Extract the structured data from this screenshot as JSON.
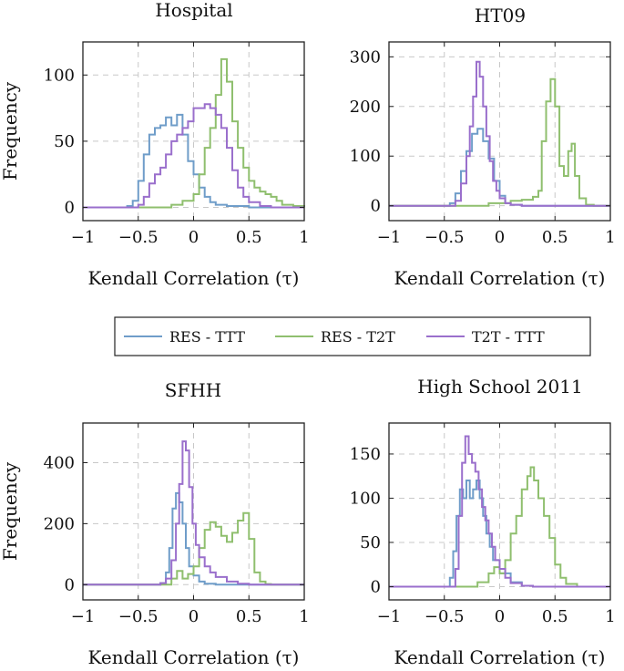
{
  "colors": {
    "res_ttt": "#6f9dc9",
    "res_t2t": "#8fbf6e",
    "t2t_ttt": "#9a6fcc"
  },
  "legend": {
    "items": [
      "RES - TTT",
      "RES - T2T",
      "T2T - TTT"
    ]
  },
  "chart_data": [
    {
      "type": "histogram",
      "title": "Hospital",
      "xlabel": "Kendall Correlation (τ)",
      "ylabel": "Frequency",
      "xlim": [
        -1,
        1
      ],
      "ylim": [
        -10,
        125
      ],
      "xticks": [
        -1,
        -0.5,
        0,
        0.5,
        1
      ],
      "xtick_labels": [
        "−1",
        "−0.5",
        "0",
        "0.5",
        "1"
      ],
      "yticks": [
        0,
        50,
        100
      ],
      "ytick_labels": [
        "0",
        "50",
        "100"
      ],
      "series": [
        {
          "name": "RES - TTT",
          "points": [
            [
              -1,
              0
            ],
            [
              -0.8,
              0
            ],
            [
              -0.6,
              1
            ],
            [
              -0.55,
              5
            ],
            [
              -0.5,
              20
            ],
            [
              -0.45,
              40
            ],
            [
              -0.4,
              55
            ],
            [
              -0.35,
              60
            ],
            [
              -0.3,
              62
            ],
            [
              -0.25,
              68
            ],
            [
              -0.2,
              62
            ],
            [
              -0.15,
              70
            ],
            [
              -0.1,
              55
            ],
            [
              -0.05,
              35
            ],
            [
              0,
              25
            ],
            [
              0.05,
              15
            ],
            [
              0.1,
              8
            ],
            [
              0.15,
              4
            ],
            [
              0.2,
              2
            ],
            [
              0.3,
              1
            ],
            [
              0.5,
              0
            ],
            [
              1,
              0
            ]
          ]
        },
        {
          "name": "RES - T2T",
          "points": [
            [
              -1,
              0
            ],
            [
              -0.3,
              0
            ],
            [
              -0.2,
              2
            ],
            [
              -0.1,
              5
            ],
            [
              0,
              10
            ],
            [
              0.05,
              25
            ],
            [
              0.1,
              45
            ],
            [
              0.15,
              60
            ],
            [
              0.2,
              85
            ],
            [
              0.25,
              112
            ],
            [
              0.3,
              95
            ],
            [
              0.35,
              65
            ],
            [
              0.4,
              45
            ],
            [
              0.45,
              30
            ],
            [
              0.5,
              20
            ],
            [
              0.55,
              15
            ],
            [
              0.6,
              12
            ],
            [
              0.65,
              10
            ],
            [
              0.7,
              8
            ],
            [
              0.75,
              5
            ],
            [
              0.8,
              2
            ],
            [
              0.9,
              1
            ],
            [
              1,
              0
            ]
          ]
        },
        {
          "name": "T2T - TTT",
          "points": [
            [
              -1,
              0
            ],
            [
              -0.6,
              0
            ],
            [
              -0.5,
              2
            ],
            [
              -0.45,
              8
            ],
            [
              -0.4,
              18
            ],
            [
              -0.35,
              25
            ],
            [
              -0.3,
              30
            ],
            [
              -0.25,
              40
            ],
            [
              -0.2,
              50
            ],
            [
              -0.15,
              55
            ],
            [
              -0.1,
              60
            ],
            [
              -0.05,
              65
            ],
            [
              0,
              75
            ],
            [
              0.05,
              75
            ],
            [
              0.1,
              78
            ],
            [
              0.15,
              75
            ],
            [
              0.2,
              70
            ],
            [
              0.25,
              60
            ],
            [
              0.3,
              45
            ],
            [
              0.35,
              28
            ],
            [
              0.4,
              15
            ],
            [
              0.45,
              8
            ],
            [
              0.5,
              4
            ],
            [
              0.6,
              1
            ],
            [
              0.7,
              0
            ],
            [
              1,
              0
            ]
          ]
        }
      ]
    },
    {
      "type": "histogram",
      "title": "HT09",
      "xlabel": "Kendall Correlation (τ)",
      "ylabel": "",
      "xlim": [
        -1,
        1
      ],
      "ylim": [
        -30,
        330
      ],
      "xticks": [
        -1,
        -0.5,
        0,
        0.5,
        1
      ],
      "xtick_labels": [
        "−1",
        "−0.5",
        "0",
        "0.5",
        "1"
      ],
      "yticks": [
        0,
        100,
        200,
        300
      ],
      "ytick_labels": [
        "0",
        "100",
        "200",
        "300"
      ],
      "series": [
        {
          "name": "RES - TTT",
          "points": [
            [
              -1,
              0
            ],
            [
              -0.5,
              0
            ],
            [
              -0.45,
              5
            ],
            [
              -0.4,
              25
            ],
            [
              -0.35,
              70
            ],
            [
              -0.3,
              110
            ],
            [
              -0.25,
              145
            ],
            [
              -0.2,
              155
            ],
            [
              -0.15,
              130
            ],
            [
              -0.1,
              95
            ],
            [
              -0.05,
              50
            ],
            [
              0,
              20
            ],
            [
              0.05,
              5
            ],
            [
              0.1,
              2
            ],
            [
              0.2,
              0
            ],
            [
              1,
              0
            ]
          ]
        },
        {
          "name": "RES - T2T",
          "points": [
            [
              -1,
              0
            ],
            [
              -0.3,
              0
            ],
            [
              -0.1,
              5
            ],
            [
              0.1,
              10
            ],
            [
              0.2,
              12
            ],
            [
              0.3,
              18
            ],
            [
              0.35,
              30
            ],
            [
              0.38,
              130
            ],
            [
              0.42,
              210
            ],
            [
              0.46,
              255
            ],
            [
              0.5,
              200
            ],
            [
              0.54,
              80
            ],
            [
              0.58,
              60
            ],
            [
              0.62,
              110
            ],
            [
              0.65,
              125
            ],
            [
              0.68,
              60
            ],
            [
              0.72,
              15
            ],
            [
              0.78,
              2
            ],
            [
              0.85,
              0
            ],
            [
              1,
              0
            ]
          ]
        },
        {
          "name": "T2T - TTT",
          "points": [
            [
              -1,
              0
            ],
            [
              -0.45,
              0
            ],
            [
              -0.4,
              10
            ],
            [
              -0.35,
              45
            ],
            [
              -0.3,
              100
            ],
            [
              -0.27,
              160
            ],
            [
              -0.24,
              220
            ],
            [
              -0.21,
              290
            ],
            [
              -0.18,
              260
            ],
            [
              -0.15,
              200
            ],
            [
              -0.12,
              140
            ],
            [
              -0.09,
              90
            ],
            [
              -0.06,
              50
            ],
            [
              -0.03,
              30
            ],
            [
              0,
              15
            ],
            [
              0.05,
              5
            ],
            [
              0.1,
              2
            ],
            [
              0.2,
              0
            ],
            [
              1,
              0
            ]
          ]
        }
      ]
    },
    {
      "type": "histogram",
      "title": "SFHH",
      "xlabel": "Kendall Correlation (τ)",
      "ylabel": "Frequency",
      "xlim": [
        -1,
        1
      ],
      "ylim": [
        -50,
        530
      ],
      "xticks": [
        -1,
        -0.5,
        0,
        0.5,
        1
      ],
      "xtick_labels": [
        "−1",
        "−0.5",
        "0",
        "0.5",
        "1"
      ],
      "yticks": [
        0,
        200,
        400
      ],
      "ytick_labels": [
        "0",
        "200",
        "400"
      ],
      "series": [
        {
          "name": "RES - TTT",
          "points": [
            [
              -1,
              0
            ],
            [
              -0.4,
              0
            ],
            [
              -0.3,
              5
            ],
            [
              -0.25,
              40
            ],
            [
              -0.22,
              120
            ],
            [
              -0.19,
              250
            ],
            [
              -0.16,
              300
            ],
            [
              -0.13,
              270
            ],
            [
              -0.1,
              200
            ],
            [
              -0.07,
              120
            ],
            [
              -0.04,
              60
            ],
            [
              0,
              30
            ],
            [
              0.05,
              10
            ],
            [
              0.1,
              3
            ],
            [
              0.2,
              0
            ],
            [
              1,
              0
            ]
          ]
        },
        {
          "name": "RES - T2T",
          "points": [
            [
              -1,
              0
            ],
            [
              -0.3,
              0
            ],
            [
              -0.2,
              20
            ],
            [
              -0.15,
              45
            ],
            [
              -0.1,
              20
            ],
            [
              -0.05,
              35
            ],
            [
              0,
              60
            ],
            [
              0.05,
              120
            ],
            [
              0.1,
              180
            ],
            [
              0.15,
              205
            ],
            [
              0.2,
              190
            ],
            [
              0.25,
              160
            ],
            [
              0.3,
              140
            ],
            [
              0.35,
              170
            ],
            [
              0.4,
              210
            ],
            [
              0.45,
              235
            ],
            [
              0.5,
              150
            ],
            [
              0.55,
              40
            ],
            [
              0.6,
              10
            ],
            [
              0.65,
              2
            ],
            [
              0.7,
              0
            ],
            [
              1,
              0
            ]
          ]
        },
        {
          "name": "T2T - TTT",
          "points": [
            [
              -1,
              0
            ],
            [
              -0.4,
              0
            ],
            [
              -0.3,
              5
            ],
            [
              -0.25,
              20
            ],
            [
              -0.2,
              80
            ],
            [
              -0.16,
              200
            ],
            [
              -0.13,
              330
            ],
            [
              -0.1,
              470
            ],
            [
              -0.07,
              440
            ],
            [
              -0.04,
              320
            ],
            [
              -0.01,
              200
            ],
            [
              0.02,
              130
            ],
            [
              0.05,
              90
            ],
            [
              0.1,
              60
            ],
            [
              0.15,
              40
            ],
            [
              0.2,
              25
            ],
            [
              0.3,
              10
            ],
            [
              0.4,
              3
            ],
            [
              0.5,
              0
            ],
            [
              1,
              0
            ]
          ]
        }
      ]
    },
    {
      "type": "histogram",
      "title": "High School 2011",
      "xlabel": "Kendall Correlation (τ)",
      "ylabel": "",
      "xlim": [
        -1,
        1
      ],
      "ylim": [
        -15,
        185
      ],
      "xticks": [
        -1,
        -0.5,
        0,
        0.5,
        1
      ],
      "xtick_labels": [
        "−1",
        "−0.5",
        "0",
        "0.5",
        "1"
      ],
      "yticks": [
        0,
        50,
        100,
        150
      ],
      "ytick_labels": [
        "0",
        "50",
        "100",
        "150"
      ],
      "series": [
        {
          "name": "RES - TTT",
          "points": [
            [
              -1,
              0
            ],
            [
              -0.5,
              0
            ],
            [
              -0.45,
              10
            ],
            [
              -0.42,
              40
            ],
            [
              -0.39,
              80
            ],
            [
              -0.36,
              110
            ],
            [
              -0.33,
              100
            ],
            [
              -0.3,
              120
            ],
            [
              -0.27,
              100
            ],
            [
              -0.24,
              110
            ],
            [
              -0.21,
              120
            ],
            [
              -0.18,
              100
            ],
            [
              -0.15,
              80
            ],
            [
              -0.12,
              60
            ],
            [
              -0.09,
              45
            ],
            [
              -0.06,
              30
            ],
            [
              0,
              15
            ],
            [
              0.1,
              5
            ],
            [
              0.2,
              1
            ],
            [
              0.3,
              0
            ],
            [
              1,
              0
            ]
          ]
        },
        {
          "name": "RES - T2T",
          "points": [
            [
              -1,
              0
            ],
            [
              -0.3,
              0
            ],
            [
              -0.2,
              5
            ],
            [
              -0.1,
              15
            ],
            [
              -0.05,
              22
            ],
            [
              0,
              15
            ],
            [
              0.05,
              30
            ],
            [
              0.1,
              60
            ],
            [
              0.15,
              80
            ],
            [
              0.2,
              110
            ],
            [
              0.25,
              125
            ],
            [
              0.28,
              135
            ],
            [
              0.31,
              120
            ],
            [
              0.35,
              100
            ],
            [
              0.4,
              80
            ],
            [
              0.45,
              55
            ],
            [
              0.5,
              25
            ],
            [
              0.55,
              10
            ],
            [
              0.6,
              3
            ],
            [
              0.7,
              0
            ],
            [
              1,
              0
            ]
          ]
        },
        {
          "name": "T2T - TTT",
          "points": [
            [
              -1,
              0
            ],
            [
              -0.45,
              0
            ],
            [
              -0.4,
              20
            ],
            [
              -0.37,
              80
            ],
            [
              -0.34,
              140
            ],
            [
              -0.31,
              170
            ],
            [
              -0.28,
              150
            ],
            [
              -0.25,
              140
            ],
            [
              -0.22,
              130
            ],
            [
              -0.19,
              110
            ],
            [
              -0.16,
              90
            ],
            [
              -0.13,
              75
            ],
            [
              -0.1,
              60
            ],
            [
              -0.07,
              45
            ],
            [
              -0.04,
              30
            ],
            [
              0,
              20
            ],
            [
              0.05,
              10
            ],
            [
              0.1,
              4
            ],
            [
              0.2,
              1
            ],
            [
              0.3,
              0
            ],
            [
              1,
              0
            ]
          ]
        }
      ]
    }
  ]
}
